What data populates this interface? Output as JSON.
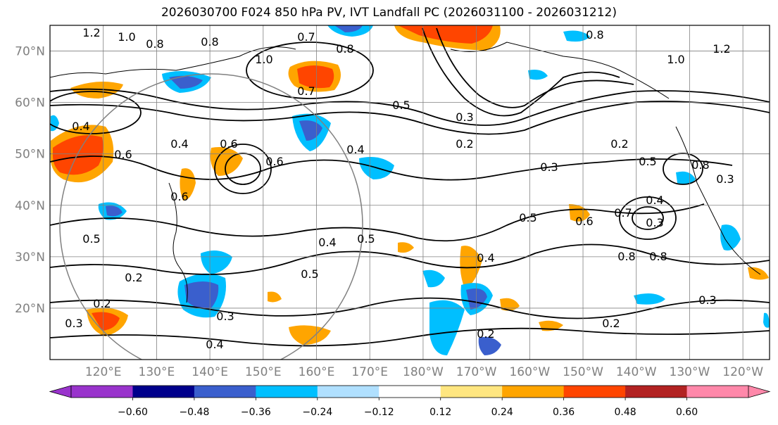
{
  "title": "2026030700 F024 850 hPa PV, IVT Landfall PC (2026031100 - 2026031212)",
  "map": {
    "lat_labels": [
      "70°N",
      "60°N",
      "50°N",
      "40°N",
      "30°N",
      "20°N"
    ],
    "lat_values": [
      70,
      60,
      50,
      40,
      30,
      20
    ],
    "lat_range": [
      10,
      75
    ],
    "lon_labels": [
      "120°E",
      "130°E",
      "140°E",
      "150°E",
      "160°E",
      "170°E",
      "180°W",
      "170°W",
      "160°W",
      "150°W",
      "140°W",
      "130°W",
      "120°W"
    ],
    "lon_values": [
      120,
      130,
      140,
      150,
      160,
      170,
      180,
      190,
      200,
      210,
      220,
      230,
      240
    ],
    "lon_range": [
      110,
      245
    ],
    "contour_labels": [
      "0.2",
      "0.3",
      "0.4",
      "0.5",
      "0.6",
      "0.7",
      "0.8",
      "1.0"
    ]
  },
  "colorbar": {
    "colors": [
      "#9933cc",
      "#00008b",
      "#3a5fcd",
      "#00bfff",
      "#b0e0ff",
      "#ffffff",
      "#ffe680",
      "#ffa500",
      "#ff4500",
      "#b22222",
      "#ff88aa"
    ],
    "tick_labels": [
      "−0.60",
      "−0.48",
      "−0.36",
      "−0.24",
      "−0.12",
      "0.12",
      "0.24",
      "0.36",
      "0.48",
      "0.60"
    ],
    "tick_values": [
      -0.6,
      -0.48,
      -0.36,
      -0.24,
      -0.12,
      0.12,
      0.24,
      0.36,
      0.48,
      0.6
    ]
  }
}
